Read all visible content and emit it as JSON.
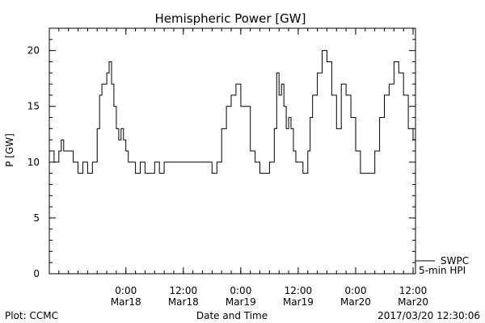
{
  "chart_data": {
    "type": "line",
    "title": "Hemispheric Power [GW]",
    "xlabel": "Date and Time",
    "ylabel": "P [GW]",
    "ylim": [
      0,
      22
    ],
    "yticks": [
      0,
      5,
      10,
      15,
      20
    ],
    "xlim": [
      "2017-03-17 08:00",
      "2017-03-20 12:30"
    ],
    "xticks": [
      {
        "t": "2017-03-18 00:00",
        "time": "0:00",
        "date": "Mar18"
      },
      {
        "t": "2017-03-18 12:00",
        "time": "12:00",
        "date": "Mar18"
      },
      {
        "t": "2017-03-19 00:00",
        "time": "0:00",
        "date": "Mar19"
      },
      {
        "t": "2017-03-19 12:00",
        "time": "12:00",
        "date": "Mar19"
      },
      {
        "t": "2017-03-20 00:00",
        "time": "0:00",
        "date": "Mar20"
      },
      {
        "t": "2017-03-20 12:00",
        "time": "12:00",
        "date": "Mar20"
      }
    ],
    "grid": false,
    "legend_placement": "bottom-right",
    "series": [
      {
        "name": "SWPC",
        "color": "#000000",
        "x": [
          "2017-03-17 08:00",
          "2017-03-17 09:00",
          "2017-03-17 10:00",
          "2017-03-17 10:30",
          "2017-03-17 11:00",
          "2017-03-17 13:00",
          "2017-03-17 14:00",
          "2017-03-17 15:00",
          "2017-03-17 16:00",
          "2017-03-17 17:00",
          "2017-03-17 18:00",
          "2017-03-17 18:30",
          "2017-03-17 19:00",
          "2017-03-17 19:30",
          "2017-03-17 20:00",
          "2017-03-17 20:30",
          "2017-03-17 21:00",
          "2017-03-17 21:30",
          "2017-03-17 22:00",
          "2017-03-17 22:30",
          "2017-03-17 23:00",
          "2017-03-17 23:30",
          "2017-03-18 00:00",
          "2017-03-18 00:30",
          "2017-03-18 01:00",
          "2017-03-18 02:00",
          "2017-03-18 03:00",
          "2017-03-18 04:00",
          "2017-03-18 06:00",
          "2017-03-18 07:00",
          "2017-03-18 08:00",
          "2017-03-18 09:00",
          "2017-03-18 11:00",
          "2017-03-18 12:00",
          "2017-03-18 13:00",
          "2017-03-18 17:00",
          "2017-03-18 18:00",
          "2017-03-18 19:00",
          "2017-03-18 20:00",
          "2017-03-18 21:00",
          "2017-03-18 22:00",
          "2017-03-18 23:00",
          "2017-03-19 00:00",
          "2017-03-19 02:00",
          "2017-03-19 03:00",
          "2017-03-19 04:00",
          "2017-03-19 05:00",
          "2017-03-19 06:00",
          "2017-03-19 07:00",
          "2017-03-19 07:30",
          "2017-03-19 08:00",
          "2017-03-19 08:30",
          "2017-03-19 09:00",
          "2017-03-19 09:30",
          "2017-03-19 10:00",
          "2017-03-19 10:30",
          "2017-03-19 11:00",
          "2017-03-19 11:30",
          "2017-03-19 12:00",
          "2017-03-19 13:00",
          "2017-03-19 14:00",
          "2017-03-19 14:30",
          "2017-03-19 15:00",
          "2017-03-19 16:00",
          "2017-03-19 17:00",
          "2017-03-19 18:00",
          "2017-03-19 19:00",
          "2017-03-19 20:00",
          "2017-03-19 21:00",
          "2017-03-19 22:00",
          "2017-03-19 23:00",
          "2017-03-20 00:00",
          "2017-03-20 01:00",
          "2017-03-20 02:00",
          "2017-03-20 03:00",
          "2017-03-20 04:00",
          "2017-03-20 05:00",
          "2017-03-20 06:00",
          "2017-03-20 07:00",
          "2017-03-20 08:00",
          "2017-03-20 09:00",
          "2017-03-20 10:00",
          "2017-03-20 11:00",
          "2017-03-20 12:00",
          "2017-03-20 12:30"
        ],
        "y": [
          11,
          10,
          11,
          12,
          11,
          10,
          9,
          10,
          9,
          10,
          13,
          16,
          17,
          17,
          18,
          19,
          17,
          15,
          13,
          12,
          13,
          12,
          11,
          10,
          10,
          9,
          10,
          9,
          10,
          9,
          10,
          10,
          10,
          10,
          10,
          10,
          9,
          10,
          13,
          15,
          16,
          17,
          15,
          11,
          10,
          9,
          9,
          10,
          13,
          18,
          16,
          17,
          15,
          13,
          14,
          13,
          11,
          10,
          10,
          9,
          11,
          14,
          16,
          18,
          20,
          19,
          16,
          13,
          17,
          16,
          14,
          11,
          9,
          9,
          9,
          11,
          14,
          16,
          17,
          19,
          18,
          16,
          13,
          12,
          12
        ]
      },
      {
        "name": "5-min HPI",
        "color": "#000000",
        "x": [],
        "y": []
      }
    ]
  },
  "footer": {
    "left": "Plot: CCMC",
    "center": "Date and Time",
    "right": "2017/03/20 12:30:06"
  }
}
